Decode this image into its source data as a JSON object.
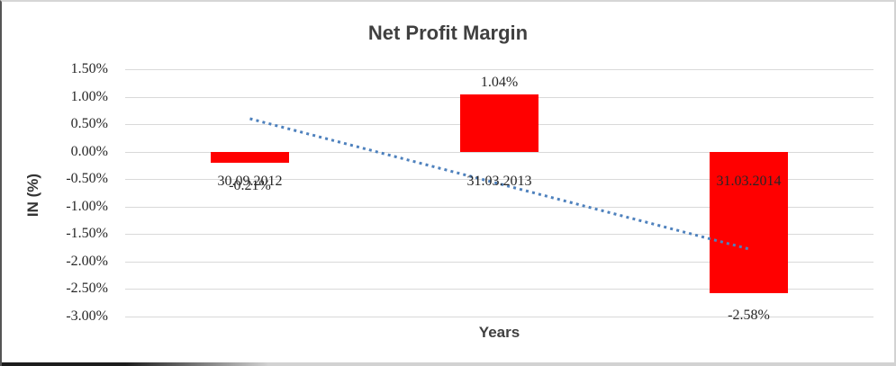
{
  "chart_data": {
    "type": "bar",
    "title": "Net Profit Margin",
    "xlabel": "Years",
    "ylabel": "IN (%)",
    "categories": [
      "30.09.2012",
      "31.03.2013",
      "31.03.2014"
    ],
    "values": [
      -0.21,
      1.04,
      -2.58
    ],
    "value_labels": [
      "-0.21%",
      "1.04%",
      "-2.58%"
    ],
    "yticks": [
      1.5,
      1.0,
      0.5,
      0.0,
      -0.5,
      -1.0,
      -1.5,
      -2.0,
      -2.5,
      -3.0
    ],
    "ytick_labels": [
      "1.50%",
      "1.00%",
      "0.50%",
      "0.00%",
      "-0.50%",
      "-1.00%",
      "-1.50%",
      "-2.00%",
      "-2.50%",
      "-3.00%"
    ],
    "ylim": [
      -3.0,
      1.5
    ],
    "grid": true,
    "legend": false,
    "bar_color": "#FF0000",
    "gridline_color": "#D9D9D9",
    "trendline": {
      "style": "dotted",
      "color": "#4E81BD",
      "start_value": 0.6,
      "end_value": -1.77
    }
  }
}
